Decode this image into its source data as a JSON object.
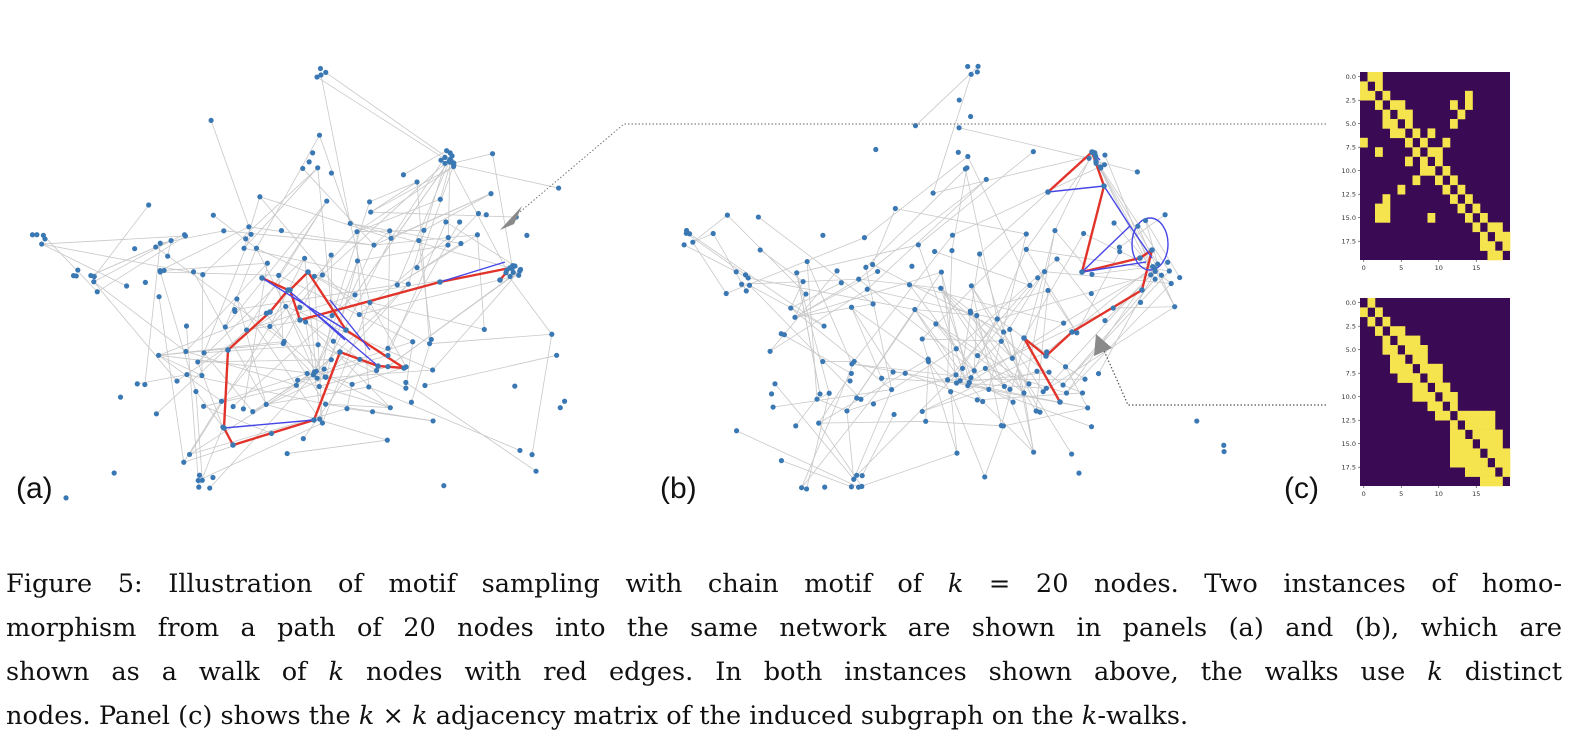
{
  "panels": {
    "a": "(a)",
    "b": "(b)",
    "c": "(c)"
  },
  "colors": {
    "node": "#3a78b4",
    "gray_edge": "#c8c8c8",
    "red_edge": "#e2332b",
    "blue_edge": "#4646e6",
    "matrix_on": "#f5e44e",
    "matrix_off": "#3b0a55",
    "arrow": "#8a8a8a"
  },
  "matrix": {
    "size": 20,
    "y_ticks": [
      "0.0",
      "2.5",
      "5.0",
      "7.5",
      "10.0",
      "12.5",
      "15.0",
      "17.5"
    ],
    "x_ticks": [
      "0",
      "5",
      "10",
      "15"
    ],
    "top_extra_cells": [
      [
        0,
        1
      ],
      [
        0,
        2
      ],
      [
        1,
        2
      ],
      [
        2,
        1
      ],
      [
        1,
        0
      ],
      [
        2,
        0
      ],
      [
        5,
        12
      ],
      [
        12,
        5
      ],
      [
        6,
        9
      ],
      [
        9,
        6
      ],
      [
        7,
        0
      ],
      [
        8,
        2
      ],
      [
        3,
        12
      ],
      [
        4,
        13
      ],
      [
        14,
        2
      ],
      [
        14,
        3
      ],
      [
        15,
        2
      ],
      [
        15,
        3
      ],
      [
        15,
        9
      ],
      [
        13,
        3
      ],
      [
        2,
        14
      ],
      [
        3,
        14
      ],
      [
        13,
        14
      ],
      [
        14,
        13
      ],
      [
        11,
        7
      ],
      [
        7,
        11
      ],
      [
        16,
        17
      ],
      [
        17,
        16
      ],
      [
        16,
        18
      ],
      [
        18,
        16
      ],
      [
        17,
        19
      ],
      [
        19,
        17
      ],
      [
        18,
        19
      ],
      [
        19,
        18
      ],
      [
        3,
        5
      ],
      [
        5,
        3
      ],
      [
        4,
        6
      ],
      [
        6,
        4
      ],
      [
        8,
        10
      ],
      [
        10,
        8
      ]
    ],
    "bottom_extra_cells": [
      [
        0,
        1
      ],
      [
        1,
        0
      ],
      [
        2,
        3
      ],
      [
        3,
        2
      ],
      [
        4,
        5
      ],
      [
        5,
        4
      ],
      [
        4,
        6
      ],
      [
        6,
        4
      ],
      [
        5,
        6
      ],
      [
        6,
        5
      ],
      [
        4,
        7
      ],
      [
        7,
        4
      ],
      [
        5,
        7
      ],
      [
        7,
        5
      ],
      [
        6,
        7
      ],
      [
        7,
        6
      ],
      [
        5,
        8
      ],
      [
        8,
        5
      ],
      [
        6,
        8
      ],
      [
        8,
        6
      ],
      [
        7,
        9
      ],
      [
        9,
        7
      ],
      [
        8,
        10
      ],
      [
        10,
        8
      ],
      [
        9,
        11
      ],
      [
        11,
        9
      ],
      [
        10,
        12
      ],
      [
        12,
        10
      ],
      [
        7,
        10
      ],
      [
        10,
        7
      ],
      [
        12,
        13
      ],
      [
        13,
        12
      ],
      [
        12,
        14
      ],
      [
        14,
        12
      ],
      [
        12,
        15
      ],
      [
        15,
        12
      ],
      [
        12,
        16
      ],
      [
        16,
        12
      ],
      [
        12,
        17
      ],
      [
        17,
        12
      ],
      [
        13,
        14
      ],
      [
        14,
        13
      ],
      [
        13,
        15
      ],
      [
        15,
        13
      ],
      [
        13,
        16
      ],
      [
        16,
        13
      ],
      [
        14,
        15
      ],
      [
        15,
        14
      ],
      [
        14,
        16
      ],
      [
        16,
        14
      ],
      [
        14,
        17
      ],
      [
        17,
        14
      ],
      [
        15,
        16
      ],
      [
        16,
        15
      ],
      [
        15,
        17
      ],
      [
        17,
        15
      ],
      [
        16,
        17
      ],
      [
        17,
        16
      ],
      [
        13,
        17
      ],
      [
        17,
        13
      ],
      [
        15,
        18
      ],
      [
        18,
        15
      ],
      [
        16,
        18
      ],
      [
        18,
        16
      ],
      [
        17,
        19
      ],
      [
        19,
        17
      ],
      [
        14,
        18
      ],
      [
        18,
        14
      ],
      [
        16,
        19
      ],
      [
        19,
        16
      ],
      [
        3,
        5
      ],
      [
        5,
        3
      ]
    ]
  },
  "caption": {
    "line1_a": "Figure 5: Illustration of motif sampling with chain motif of ",
    "line1_k": "k",
    "line1_b": " = 20 nodes. Two instances of homo-",
    "line2": "morphism from a path of 20 nodes into the same network are shown in panels (a) and (b), which are",
    "line3_a": "shown as a walk of ",
    "line3_k": "k",
    "line3_b": " nodes with red edges. In both instances shown above, the walks use ",
    "line3_k2": "k",
    "line3_c": " distinct",
    "line4_a": "nodes. Panel (c) shows the ",
    "line4_k": "k",
    "line4_x": " × ",
    "line4_k2": "k",
    "line4_b": " adjacency matrix of the induced subgraph on the ",
    "line4_k3": "k",
    "line4_c": "-walks."
  }
}
